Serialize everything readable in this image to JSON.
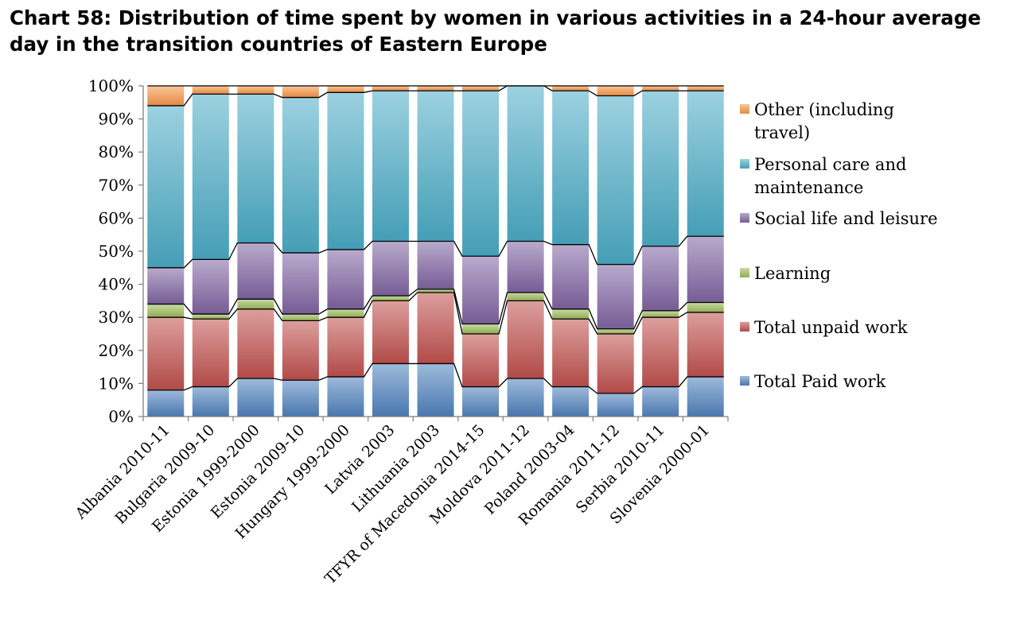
{
  "chart_data": {
    "type": "bar",
    "stacked": "percent",
    "title": "Chart 58: Distribution of time spent by women in various activities in a 24-hour average day in the transition countries of Eastern Europe",
    "xlabel": "",
    "ylabel": "",
    "ylim": [
      0,
      100
    ],
    "y_ticks": [
      "0%",
      "10%",
      "20%",
      "30%",
      "40%",
      "50%",
      "60%",
      "70%",
      "80%",
      "90%",
      "100%"
    ],
    "grid": false,
    "legend_position": "right",
    "series_lines": true,
    "categories": [
      "Albania 2010-11",
      "Bulgaria 2009-10",
      "Estonia 1999-2000",
      "Estonia 2009-10",
      "Hungary 1999-2000",
      "Latvia 2003",
      "Lithuania 2003",
      "TFYR of Macedonia 2014-15",
      "Moldova 2011-12",
      "Poland 2003-04",
      "Romania 2011-12",
      "Serbia 2010-11",
      "Slovenia 2000-01"
    ],
    "series": [
      {
        "name": "Total Paid work",
        "color": "#4f81bd",
        "values": [
          8,
          9,
          11.5,
          11,
          12,
          16,
          16,
          9,
          11.5,
          9,
          7,
          9,
          12
        ]
      },
      {
        "name": "Total unpaid work",
        "color": "#c0504d",
        "values": [
          22,
          20.5,
          21,
          18,
          18,
          19,
          21.5,
          16,
          23.5,
          20.5,
          18,
          21,
          19.5
        ]
      },
      {
        "name": "Learning",
        "color": "#9bbb59",
        "values": [
          4,
          1.5,
          3,
          2,
          2.5,
          1.5,
          1,
          3,
          2.5,
          3,
          1.5,
          2,
          3
        ]
      },
      {
        "name": "Social life and leisure",
        "color": "#8064a2",
        "values": [
          11,
          16.5,
          17,
          18.5,
          18,
          16.5,
          14.5,
          20.5,
          15.5,
          19.5,
          19.5,
          19.5,
          20
        ]
      },
      {
        "name": "Personal care and maintenance",
        "color": "#4bacc6",
        "values": [
          49,
          50,
          45,
          47,
          47.5,
          45.5,
          45.5,
          50,
          47,
          46.5,
          51,
          47,
          44
        ]
      },
      {
        "name": "Other (including travel)",
        "color": "#f79646",
        "values": [
          6,
          2.5,
          2.5,
          3.5,
          2,
          1.5,
          1.5,
          1.5,
          0,
          1.5,
          3,
          1.5,
          1.5
        ]
      }
    ],
    "legend_order": [
      {
        "lines": [
          "Other (including",
          "travel)"
        ],
        "series": 5
      },
      {
        "lines": [
          "Personal care and",
          "maintenance"
        ],
        "series": 4
      },
      {
        "lines": [
          "Social life and leisure"
        ],
        "series": 3
      },
      {
        "lines": [
          "Learning"
        ],
        "series": 2
      },
      {
        "lines": [
          "Total unpaid work"
        ],
        "series": 1
      },
      {
        "lines": [
          "Total Paid work"
        ],
        "series": 0
      }
    ]
  }
}
